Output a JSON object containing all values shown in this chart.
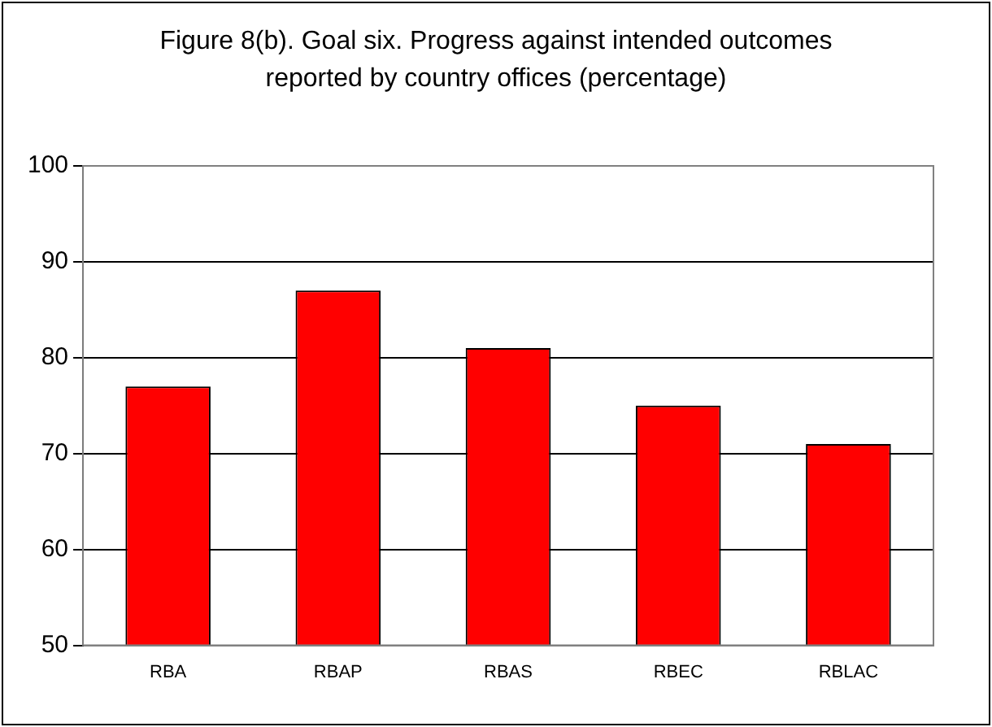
{
  "chart_data": {
    "type": "bar",
    "title": "Figure 8(b). Goal six.  Progress against intended outcomes reported by country offices (percentage)",
    "categories": [
      "RBA",
      "RBAP",
      "RBAS",
      "RBEC",
      "RBLAC"
    ],
    "values": [
      77,
      87,
      81,
      75,
      71
    ],
    "color": "#ff0000",
    "ylim": [
      50,
      100
    ],
    "yticks": [
      50,
      60,
      70,
      80,
      90,
      100
    ],
    "grid": "y",
    "legend": false
  }
}
